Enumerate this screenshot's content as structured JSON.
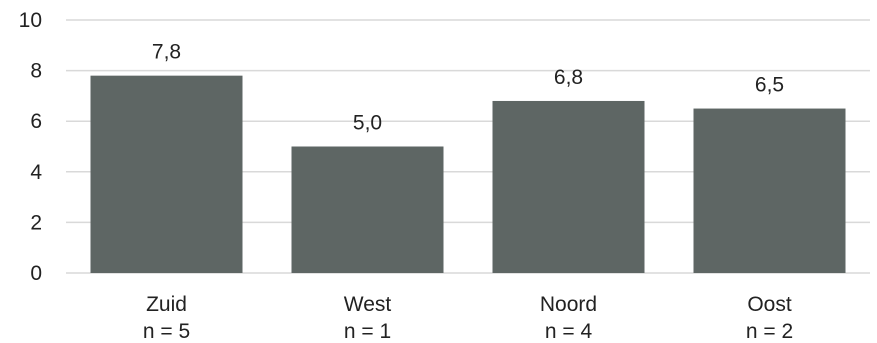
{
  "chart_data": {
    "type": "bar",
    "categories": [
      "Zuid",
      "West",
      "Noord",
      "Oost"
    ],
    "category_sublabels": [
      "n = 5",
      "n = 1",
      "n = 4",
      "n = 2"
    ],
    "values": [
      7.8,
      5.0,
      6.8,
      6.5
    ],
    "data_labels": [
      "7,8",
      "5,0",
      "6,8",
      "6,5"
    ],
    "ylim": [
      0,
      10
    ],
    "yticks": [
      0,
      2,
      4,
      6,
      8,
      10
    ],
    "grid": true,
    "legend": "none",
    "title": "",
    "xlabel": "",
    "ylabel": ""
  },
  "colors": {
    "bar": "#5e6664",
    "grid": "#d9d9d9",
    "text": "#222222"
  }
}
